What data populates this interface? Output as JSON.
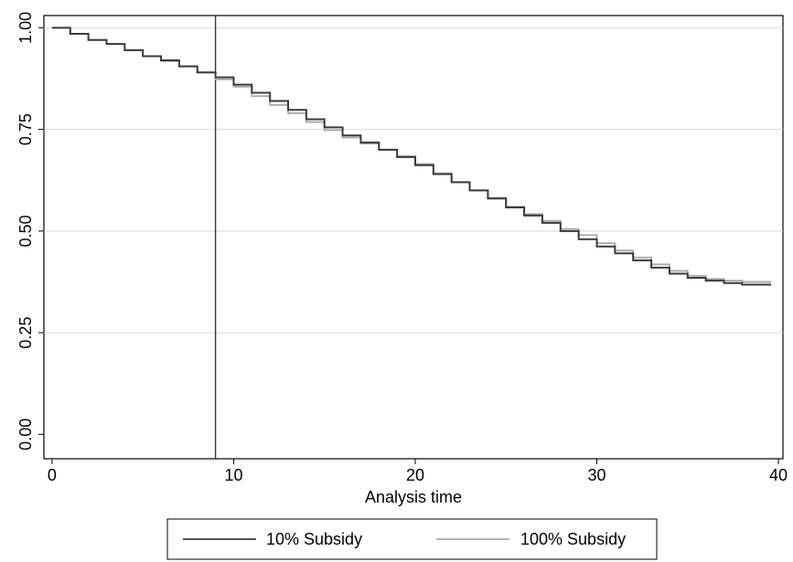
{
  "chart_data": {
    "type": "line",
    "title": "",
    "xlabel": "Analysis time",
    "ylabel": "",
    "xlim": [
      0,
      40
    ],
    "ylim": [
      0,
      1
    ],
    "x_ticks": [
      "0",
      "10",
      "20",
      "30",
      "40"
    ],
    "y_ticks": [
      "0.00",
      "0.25",
      "0.50",
      "0.75",
      "1.00"
    ],
    "grid": "horizontal",
    "reference_line_x": 9,
    "legend_position": "bottom",
    "series": [
      {
        "name": "10% Subsidy",
        "color": "#3a3a3a",
        "step": true,
        "x": [
          0,
          1,
          2,
          3,
          4,
          5,
          6,
          7,
          8,
          9,
          10,
          11,
          12,
          13,
          14,
          15,
          16,
          17,
          18,
          19,
          20,
          21,
          22,
          23,
          24,
          25,
          26,
          27,
          28,
          29,
          30,
          31,
          32,
          33,
          34,
          35,
          36,
          37,
          38,
          39
        ],
        "y": [
          1.0,
          0.985,
          0.97,
          0.96,
          0.945,
          0.93,
          0.92,
          0.905,
          0.89,
          0.878,
          0.86,
          0.84,
          0.82,
          0.798,
          0.775,
          0.755,
          0.735,
          0.718,
          0.7,
          0.682,
          0.662,
          0.64,
          0.62,
          0.6,
          0.58,
          0.558,
          0.538,
          0.52,
          0.5,
          0.48,
          0.462,
          0.445,
          0.428,
          0.41,
          0.395,
          0.385,
          0.378,
          0.372,
          0.368,
          0.368
        ]
      },
      {
        "name": "100% Subsidy",
        "color": "#a8a8a8",
        "step": true,
        "x": [
          0,
          1,
          2,
          3,
          4,
          5,
          6,
          7,
          8,
          9,
          10,
          11,
          12,
          13,
          14,
          15,
          16,
          17,
          18,
          19,
          20,
          21,
          22,
          23,
          24,
          25,
          26,
          27,
          28,
          29,
          30,
          31,
          32,
          33,
          34,
          35,
          36,
          37,
          38,
          39
        ],
        "y": [
          1.0,
          0.985,
          0.97,
          0.96,
          0.945,
          0.93,
          0.918,
          0.905,
          0.89,
          0.873,
          0.855,
          0.832,
          0.81,
          0.79,
          0.768,
          0.748,
          0.73,
          0.715,
          0.7,
          0.684,
          0.665,
          0.642,
          0.62,
          0.6,
          0.582,
          0.56,
          0.542,
          0.525,
          0.505,
          0.49,
          0.47,
          0.452,
          0.435,
          0.418,
          0.402,
          0.39,
          0.382,
          0.378,
          0.375,
          0.375
        ]
      }
    ]
  }
}
